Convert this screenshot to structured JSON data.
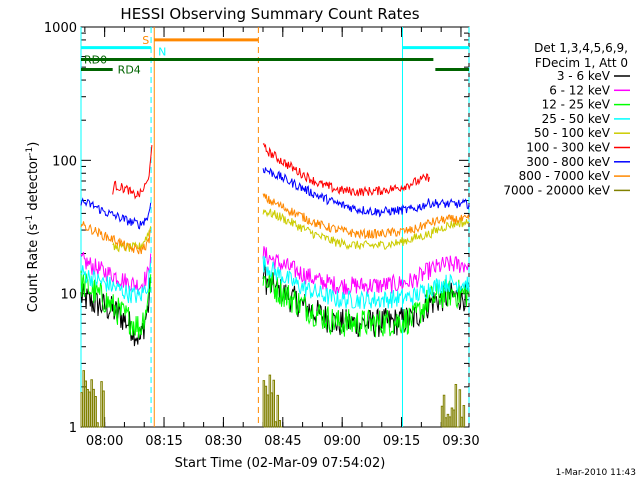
{
  "chart_data": {
    "type": "line",
    "title": "HESSI Observing Summary Count Rates",
    "xlabel": "Start Time (02-Mar-09 07:54:02)",
    "ylabel": "Count Rate (s",
    "ylabel_sup": "-1",
    "ylabel_tail": " detector",
    "ylabel_sup2": "-1",
    "ylabel_close": ")",
    "x_unit": "minutes since 07:54:02",
    "xlim": [
      0,
      98
    ],
    "ylim": [
      1,
      1000
    ],
    "yscale": "log",
    "x_tick_labels": [
      "08:00",
      "08:15",
      "08:30",
      "08:45",
      "09:00",
      "09:15",
      "09:30"
    ],
    "x_tick_values": [
      5.97,
      20.97,
      35.97,
      50.97,
      65.97,
      80.97,
      95.97
    ],
    "y_tick_labels": [
      "1",
      "10",
      "100",
      "1000"
    ],
    "y_tick_values": [
      1,
      10,
      100,
      1000
    ],
    "legend_header": [
      "Det 1,3,4,5,6,9,",
      "FDecim 1, Att 0"
    ],
    "series": [
      {
        "name": "3 - 6 keV",
        "color": "#000000",
        "segments": [
          {
            "x": [
              0,
              3,
              6,
              9,
              12,
              15,
              17,
              17.6
            ],
            "y": [
              9.5,
              8.5,
              8,
              7.2,
              6,
              4.5,
              8,
              12
            ]
          },
          {
            "x": [
              46,
              47,
              50,
              55,
              60,
              65,
              70,
              75,
              80,
              84,
              88,
              92,
              95,
              98
            ],
            "y": [
              15,
              12,
              10.5,
              8.5,
              7,
              6,
              6,
              6,
              6.2,
              6.5,
              8.5,
              9.5,
              9.5,
              9.5
            ]
          }
        ]
      },
      {
        "name": "6 - 12 keV",
        "color": "#ff00ff",
        "segments": [
          {
            "x": [
              0,
              3,
              6,
              9,
              12,
              15,
              17,
              17.6
            ],
            "y": [
              18,
              16,
              14.5,
              13.5,
              12,
              11.5,
              14,
              20
            ]
          },
          {
            "x": [
              46,
              47,
              50,
              55,
              60,
              65,
              70,
              75,
              80,
              84,
              88,
              92,
              95,
              98
            ],
            "y": [
              20,
              19,
              17,
              14.5,
              12.5,
              11.5,
              11.5,
              11.5,
              11.8,
              12.5,
              15,
              16.5,
              16.5,
              16.5
            ]
          }
        ]
      },
      {
        "name": "12 - 25 keV",
        "color": "#00ff00",
        "segments": [
          {
            "x": [
              0,
              3,
              6,
              9,
              12,
              15,
              17,
              17.6
            ],
            "y": [
              12,
              10.5,
              9,
              7.5,
              6.5,
              5.5,
              9,
              14
            ]
          },
          {
            "x": [
              46,
              47,
              50,
              55,
              60,
              65,
              70,
              75,
              80,
              84,
              88,
              92,
              95,
              98
            ],
            "y": [
              13,
              12.5,
              10.5,
              8.5,
              7,
              6,
              6,
              6,
              6.2,
              6.5,
              9,
              10,
              10,
              10
            ]
          }
        ]
      },
      {
        "name": "25 - 50 keV",
        "color": "#00ffff",
        "segments": [
          {
            "x": [
              0,
              3,
              6,
              9,
              12,
              15,
              17,
              17.6
            ],
            "y": [
              14.5,
              13,
              12,
              11,
              10,
              9.5,
              12,
              17
            ]
          },
          {
            "x": [
              46,
              47,
              50,
              55,
              60,
              65,
              70,
              75,
              80,
              84,
              88,
              92,
              95,
              98
            ],
            "y": [
              17,
              16,
              14,
              11.5,
              10,
              9,
              9,
              9,
              9.2,
              9.5,
              11,
              12,
              12,
              12
            ]
          }
        ]
      },
      {
        "name": "50 - 100 keV",
        "color": "#cccc00",
        "segments": [
          {
            "x": [
              8,
              10,
              12,
              15,
              17,
              17.6
            ],
            "y": [
              22,
              22.5,
              22,
              22.5,
              28,
              32
            ]
          },
          {
            "x": [
              46,
              47,
              50,
              55,
              60,
              65,
              70,
              75,
              80,
              84,
              88,
              92,
              95,
              98
            ],
            "y": [
              42,
              41,
              38,
              32,
              27,
              24,
              23,
              23,
              24,
              26,
              28,
              32,
              34,
              34
            ]
          }
        ]
      },
      {
        "name": "100 - 300 keV",
        "color": "#ff0000",
        "segments": [
          {
            "x": [
              8,
              8.5,
              12,
              13,
              15,
              17,
              17.6,
              17.9
            ],
            "y": [
              60,
              65,
              60,
              55,
              56,
              70,
              110,
              130
            ]
          },
          {
            "x": [
              46,
              47,
              50,
              55,
              60,
              65,
              70,
              75,
              80,
              84,
              88
            ],
            "y": [
              125,
              118,
              102,
              82,
              67,
              60,
              58,
              59,
              62,
              68,
              75
            ]
          }
        ]
      },
      {
        "name": "300 - 800 keV",
        "color": "#0000ff",
        "segments": [
          {
            "x": [
              0,
              3,
              6,
              9,
              12,
              15,
              17,
              17.6
            ],
            "y": [
              49,
              46,
              41,
              38,
              35,
              33,
              38,
              48
            ]
          },
          {
            "x": [
              46,
              47,
              50,
              55,
              60,
              65,
              70,
              75,
              80,
              84,
              88,
              92,
              95,
              98
            ],
            "y": [
              87,
              84,
              76,
              64,
              54,
              47,
              43,
              41,
              42,
              43,
              48,
              47,
              47,
              47
            ]
          }
        ]
      },
      {
        "name": "800 - 7000 keV",
        "color": "#ff8800",
        "segments": [
          {
            "x": [
              0,
              3,
              6,
              9,
              12,
              15,
              17,
              17.6
            ],
            "y": [
              33,
              30,
              27,
              25,
              22,
              21,
              24,
              30
            ]
          },
          {
            "x": [
              46,
              47,
              50,
              55,
              60,
              65,
              70,
              75,
              80,
              84,
              88,
              92,
              95,
              98
            ],
            "y": [
              54,
              51,
              46,
              39,
              33,
              30,
              28,
              28,
              29,
              30,
              34,
              36,
              36,
              36
            ]
          }
        ]
      },
      {
        "name": "7000 - 20000 keV",
        "color": "#808000",
        "segments": [
          {
            "x": [
              0,
              1,
              2,
              3,
              4,
              5,
              6
            ],
            "y": [
              1.8,
              2.6,
              1.4,
              2.2,
              1.1,
              1.7,
              1.2
            ]
          },
          {
            "x": [
              46,
              47,
              48,
              49,
              50,
              51
            ],
            "y": [
              2.4,
              1.5,
              2.2,
              1.2,
              1.6,
              1.1
            ]
          },
          {
            "x": [
              91,
              92,
              93,
              94,
              95,
              96,
              97
            ],
            "y": [
              1.2,
              1.7,
              1.1,
              1.9,
              1.3,
              1.6,
              1.2
            ]
          }
        ]
      }
    ],
    "markers": {
      "S": {
        "label": "S",
        "color": "#ff8800",
        "bar_x": [
          18.5,
          44.8
        ],
        "value": 800,
        "vlines": [
          18.5,
          44.8
        ]
      },
      "N": {
        "label": "N",
        "color": "#00ffff",
        "bars": [
          [
            0,
            17.7
          ],
          [
            81.2,
            98
          ]
        ],
        "value": 700,
        "vlines_solid": [
          0,
          81.2
        ],
        "vlines_dashed": [
          17.7,
          98
        ]
      },
      "RD0": {
        "label": "RD0",
        "color": "#006400",
        "bar_x": [
          0,
          89
        ],
        "value": 570
      },
      "RD4": {
        "label": "RD4",
        "color": "#006400",
        "bars": [
          [
            0,
            8
          ],
          [
            89.5,
            98
          ]
        ],
        "value": 480
      }
    },
    "footer": "1-Mar-2010 11:43"
  }
}
